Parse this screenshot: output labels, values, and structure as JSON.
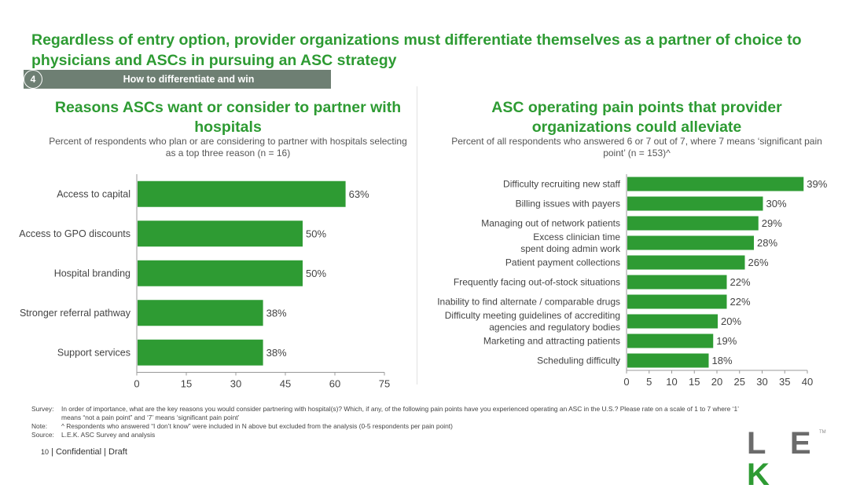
{
  "headline": "Regardless of entry option, provider organizations must differentiate themselves as a partner of choice to physicians and ASCs in pursuing an ASC strategy",
  "section": {
    "number": "4",
    "label": "How to differentiate and win"
  },
  "left_chart": {
    "title": "Reasons ASCs want or consider to partner with hospitals",
    "subtitle": "Percent of respondents who plan or are considering to partner with hospitals selecting as a top three reason (n = 16)"
  },
  "right_chart": {
    "title": "ASC operating pain points that provider organizations could alleviate",
    "subtitle": "Percent of all respondents who answered 6 or 7 out of 7, where 7 means ‘significant pain point’ (n = 153)^"
  },
  "chart_data": [
    {
      "type": "bar",
      "orientation": "horizontal",
      "title": "Reasons ASCs want or consider to partner with hospitals",
      "categories": [
        "Access to capital",
        "Access to GPO discounts",
        "Hospital branding",
        "Stronger referral pathway",
        "Support services"
      ],
      "values": [
        63,
        50,
        50,
        38,
        38
      ],
      "value_labels": [
        "63%",
        "50%",
        "50%",
        "38%",
        "38%"
      ],
      "xlim": [
        0,
        75
      ],
      "xticks": [
        0,
        15,
        30,
        45,
        60,
        75
      ],
      "grid": false,
      "bar_color": "#2e9b33"
    },
    {
      "type": "bar",
      "orientation": "horizontal",
      "title": "ASC operating pain points that provider organizations could alleviate",
      "categories": [
        "Difficulty recruiting new staff",
        "Billing issues with payers",
        "Managing out of network patients",
        "Excess clinician time spent doing admin work",
        "Patient payment collections",
        "Frequently facing out-of-stock situations",
        "Inability to find alternate / comparable drugs",
        "Difficulty meeting guidelines of accrediting agencies and regulatory bodies",
        "Marketing and attracting patients",
        "Scheduling difficulty"
      ],
      "values": [
        39,
        30,
        29,
        28,
        26,
        22,
        22,
        20,
        19,
        18
      ],
      "value_labels": [
        "39%",
        "30%",
        "29%",
        "28%",
        "26%",
        "22%",
        "22%",
        "20%",
        "19%",
        "18%"
      ],
      "xlim": [
        0,
        40
      ],
      "xticks": [
        0,
        5,
        10,
        15,
        20,
        25,
        30,
        35,
        40
      ],
      "grid": false,
      "bar_color": "#2e9b33"
    }
  ],
  "footnotes": [
    {
      "key": "Survey:",
      "text": "In order of importance, what are the key reasons you would consider partnering with hospital(s)? Which, if any, of the following pain points have you experienced operating an ASC in the U.S.? Please rate on a scale of 1 to 7 where ‘1’ means “not a pain point” and ‘7’ means ‘significant pain point’"
    },
    {
      "key": "Note:",
      "text": "^ Respondents who answered “I don’t know” were included in N above but excluded from the analysis (0-5 respondents per pain point)"
    },
    {
      "key": "Source:",
      "text": "L.E.K. ASC Survey and analysis"
    }
  ],
  "footer": {
    "page_number": "10",
    "label": "| Confidential | Draft"
  },
  "logo": {
    "text": "LEK",
    "trademark": "TM"
  },
  "colors": {
    "accent": "#2e9b33",
    "tag_bg": "#6e7f73"
  }
}
